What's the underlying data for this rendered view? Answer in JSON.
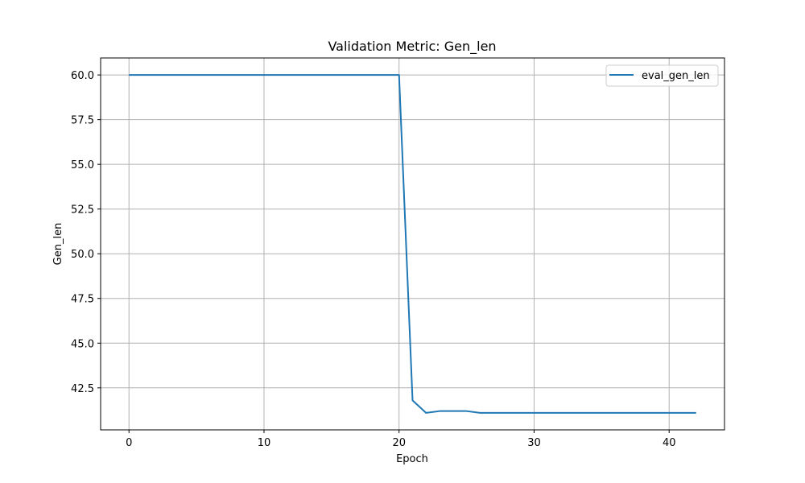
{
  "chart_data": {
    "type": "line",
    "title": "Validation Metric: Gen_len",
    "xlabel": "Epoch",
    "ylabel": "Gen_len",
    "xlim": [
      -2.1,
      44.1
    ],
    "ylim": [
      40.15,
      60.95
    ],
    "xticks": [
      0,
      10,
      20,
      30,
      40
    ],
    "xtick_labels": [
      "0",
      "10",
      "20",
      "30",
      "40"
    ],
    "yticks": [
      42.5,
      45.0,
      47.5,
      50.0,
      52.5,
      55.0,
      57.5,
      60.0
    ],
    "ytick_labels": [
      "42.5",
      "45.0",
      "47.5",
      "50.0",
      "52.5",
      "55.0",
      "57.5",
      "60.0"
    ],
    "grid": true,
    "legend_position": "top-right",
    "series": [
      {
        "name": "eval_gen_len",
        "color": "#1f77b4",
        "x": [
          0,
          1,
          2,
          3,
          4,
          5,
          6,
          7,
          8,
          9,
          10,
          11,
          12,
          13,
          14,
          15,
          16,
          17,
          18,
          19,
          20,
          21,
          22,
          23,
          24,
          25,
          26,
          27,
          28,
          29,
          30,
          31,
          32,
          33,
          34,
          35,
          36,
          37,
          38,
          39,
          40,
          41,
          42
        ],
        "y": [
          60,
          60,
          60,
          60,
          60,
          60,
          60,
          60,
          60,
          60,
          60,
          60,
          60,
          60,
          60,
          60,
          60,
          60,
          60,
          60,
          60,
          41.8,
          41.1,
          41.2,
          41.2,
          41.2,
          41.1,
          41.1,
          41.1,
          41.1,
          41.1,
          41.1,
          41.1,
          41.1,
          41.1,
          41.1,
          41.1,
          41.1,
          41.1,
          41.1,
          41.1,
          41.1,
          41.1
        ]
      }
    ]
  }
}
